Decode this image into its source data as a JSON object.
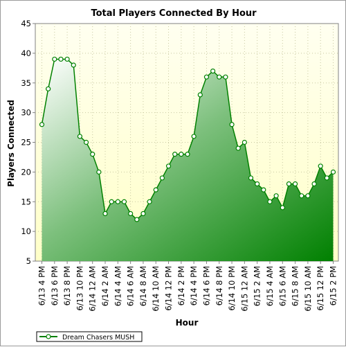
{
  "chart_data": {
    "type": "area",
    "title": "Total Players Connected By Hour",
    "xlabel": "Hour",
    "ylabel": "Players Connected",
    "ylim": [
      5,
      45
    ],
    "yticks": [
      5,
      10,
      15,
      20,
      25,
      30,
      35,
      40,
      45
    ],
    "grid": true,
    "legend_position": "bottom-left",
    "x_tick_labels": [
      "6/13 4 PM",
      "6/13 6 PM",
      "6/13 8 PM",
      "6/13 10 PM",
      "6/14 12 AM",
      "6/14 2 AM",
      "6/14 4 AM",
      "6/14 6 AM",
      "6/14 8 AM",
      "6/14 10 AM",
      "6/14 12 PM",
      "6/14 2 PM",
      "6/14 4 PM",
      "6/14 6 PM",
      "6/14 8 PM",
      "6/14 10 PM",
      "6/15 12 AM",
      "6/15 2 AM",
      "6/15 4 AM",
      "6/15 6 AM",
      "6/15 8 AM",
      "6/15 10 AM",
      "6/15 12 PM",
      "6/15 2 PM"
    ],
    "series": [
      {
        "name": "Dream Chasers MUSH",
        "color": "#008000",
        "values": [
          28,
          34,
          39,
          39,
          39,
          38,
          26,
          25,
          23,
          20,
          13,
          15,
          15,
          15,
          13,
          12,
          13,
          15,
          17,
          19,
          21,
          23,
          23,
          23,
          26,
          33,
          36,
          37,
          36,
          36,
          28,
          24,
          25,
          19,
          18,
          17,
          15,
          16,
          14,
          18,
          18,
          16,
          16,
          18,
          21,
          19,
          20
        ]
      }
    ]
  }
}
